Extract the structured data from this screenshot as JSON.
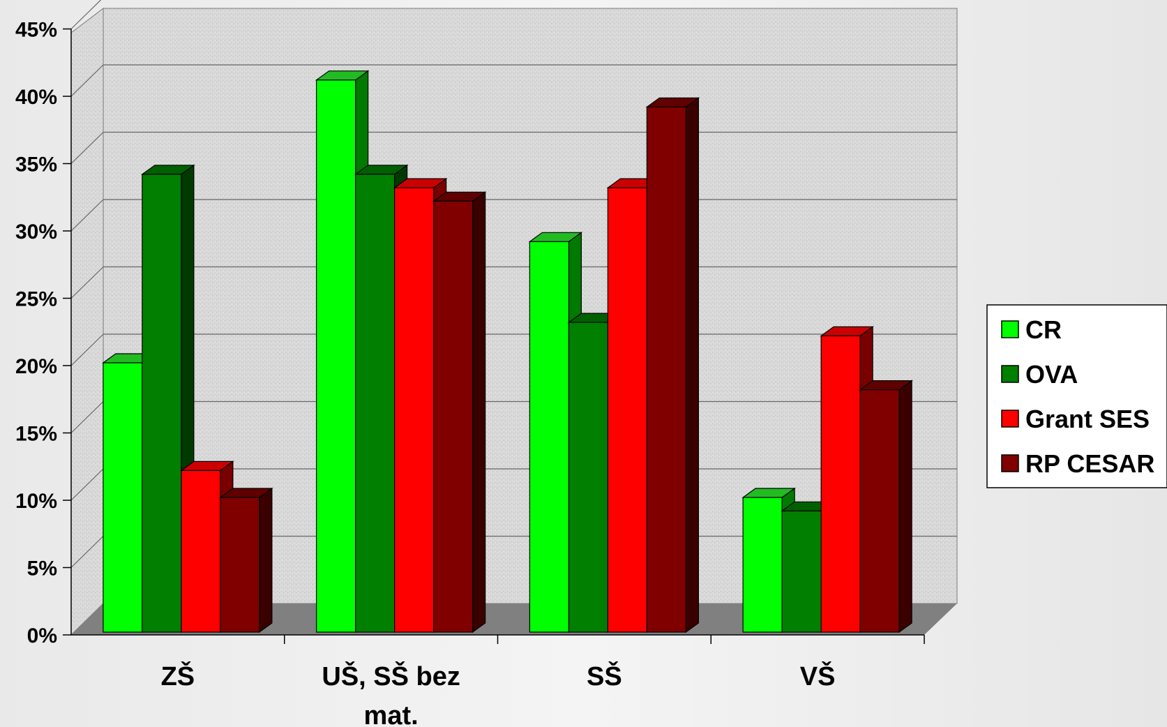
{
  "chart_data": {
    "type": "bar",
    "categories": [
      "ZŠ",
      "UŠ, SŠ bez mat.",
      "SŠ",
      "VŠ"
    ],
    "series": [
      {
        "name": "CR",
        "values": [
          20,
          41,
          29,
          10
        ],
        "color": "#00ff00",
        "side_color": "#007a00",
        "top_color": "#22bb22"
      },
      {
        "name": "OVA",
        "values": [
          34,
          34,
          23,
          9
        ],
        "color": "#007f00",
        "side_color": "#003a00",
        "top_color": "#006000"
      },
      {
        "name": "Grant SES",
        "values": [
          12,
          33,
          33,
          22
        ],
        "color": "#ff0000",
        "side_color": "#7a0000",
        "top_color": "#cc0000"
      },
      {
        "name": "RP CESAR",
        "values": [
          10,
          32,
          39,
          18
        ],
        "color": "#800000",
        "side_color": "#3a0000",
        "top_color": "#600000"
      }
    ],
    "yticks": [
      "0%",
      "5%",
      "10%",
      "15%",
      "20%",
      "25%",
      "30%",
      "35%",
      "40%",
      "45%"
    ],
    "ylim": [
      0,
      45
    ],
    "grid": true,
    "legend_position": "right",
    "colors": {
      "back_wall": "#d9d9d9",
      "floor": "#808080",
      "gridline": "#666666"
    }
  }
}
